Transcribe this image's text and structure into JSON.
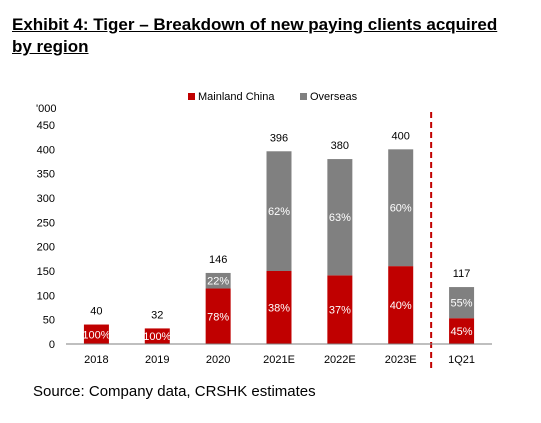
{
  "title": "Exhibit 4: Tiger – Breakdown of new paying clients acquired by region",
  "source": "Source: Company data, CRSHK estimates",
  "chart_data": {
    "type": "bar",
    "stacked": true,
    "unit_label": "'000",
    "categories": [
      "2018",
      "2019",
      "2020",
      "2021E",
      "2022E",
      "2023E",
      "1Q21"
    ],
    "totals": [
      40,
      32,
      146,
      396,
      380,
      400,
      117
    ],
    "total_labels": [
      "40",
      "32",
      "146",
      "396",
      "380",
      "400",
      "117"
    ],
    "series": [
      {
        "name": "Mainland China",
        "color": "#c00000",
        "values": [
          40,
          32,
          114,
          150,
          141,
          160,
          53
        ],
        "labels": [
          "100%",
          "100%",
          "78%",
          "38%",
          "37%",
          "40%",
          "45%"
        ]
      },
      {
        "name": "Overseas",
        "color": "#808080",
        "values": [
          0,
          0,
          32,
          246,
          239,
          240,
          64
        ],
        "labels": [
          "",
          "",
          "22%",
          "62%",
          "63%",
          "60%",
          "55%"
        ]
      }
    ],
    "ylim": [
      0,
      450
    ],
    "yticks": [
      0,
      50,
      100,
      150,
      200,
      250,
      300,
      350,
      400,
      450
    ],
    "ytick_labels": [
      "0",
      "50",
      "100",
      "150",
      "200",
      "250",
      "300",
      "350",
      "400",
      "450"
    ],
    "legend_position": "top",
    "divider_after_index": 5,
    "divider_color": "#c00000",
    "grid": false
  }
}
